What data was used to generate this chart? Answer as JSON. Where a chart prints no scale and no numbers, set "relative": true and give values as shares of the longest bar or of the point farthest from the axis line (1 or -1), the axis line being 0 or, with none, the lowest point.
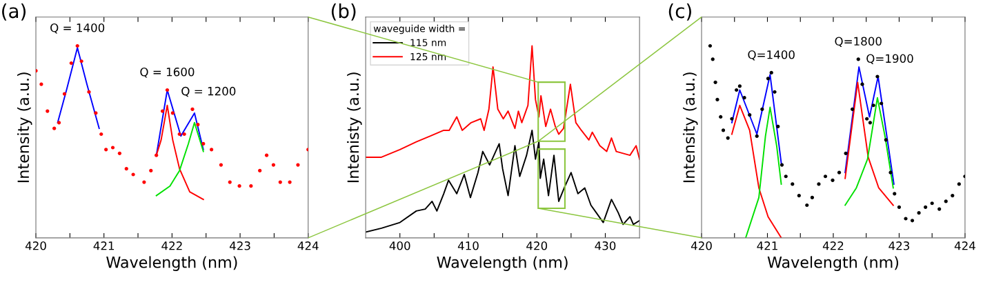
{
  "chart_data": [
    {
      "type": "scatter",
      "title": "(a)",
      "xlabel": "Wavelength (nm)",
      "ylabel": "Intensity (a.u.)",
      "relative": true,
      "xlim": [
        420,
        424
      ],
      "xticks": [
        420,
        {
          "value": 420.5,
          "label": null
        },
        421,
        {
          "value": 421.5,
          "label": null
        },
        422,
        {
          "value": 422.5,
          "label": null
        },
        423,
        {
          "value": 423.5,
          "label": null
        },
        424
      ],
      "grid": false,
      "legend": false,
      "annotations": [
        {
          "text": "Q = 1400",
          "x": 420.61,
          "y": 1.0
        },
        {
          "text": "Q = 1600",
          "x": 421.93,
          "y": 0.77
        },
        {
          "text": "Q = 1200",
          "x": 422.3,
          "y": 0.67
        }
      ],
      "series": [
        {
          "type": "scatter",
          "color": "#ff0000",
          "marker": "circle",
          "x": [
            420.0,
            420.08,
            420.17,
            420.27,
            420.34,
            420.42,
            420.52,
            420.61,
            420.67,
            420.78,
            420.88,
            420.96,
            421.03,
            421.13,
            421.23,
            421.33,
            421.43,
            421.59,
            421.69,
            421.77,
            421.86,
            421.93,
            422.01,
            422.11,
            422.18,
            422.3,
            422.38,
            422.46,
            422.58,
            422.72,
            422.85,
            422.99,
            423.16,
            423.29,
            423.39,
            423.49,
            423.59,
            423.73,
            423.85,
            424.0
          ],
          "values": [
            0.87,
            0.8,
            0.66,
            0.57,
            0.6,
            0.75,
            0.91,
            1.0,
            0.92,
            0.76,
            0.65,
            0.54,
            0.46,
            0.47,
            0.44,
            0.36,
            0.33,
            0.29,
            0.35,
            0.43,
            0.66,
            0.77,
            0.65,
            0.54,
            0.54,
            0.67,
            0.59,
            0.49,
            0.46,
            0.38,
            0.29,
            0.27,
            0.27,
            0.35,
            0.43,
            0.38,
            0.29,
            0.29,
            0.38,
            0.46
          ]
        },
        {
          "type": "line",
          "color": "#0000ff",
          "x": [
            420.32,
            420.45,
            420.61,
            420.75,
            420.93,
            421.3,
            421.77,
            421.93,
            422.13,
            422.33,
            422.46
          ],
          "values": [
            0.6,
            0.77,
            0.99,
            0.8,
            0.57,
            null,
            0.43,
            0.77,
            0.53,
            0.65,
            0.46
          ]
        },
        {
          "type": "line",
          "color": "#ff0000",
          "x": [
            421.77,
            421.84,
            421.93,
            422.01,
            422.11,
            422.26,
            422.46
          ],
          "values": [
            0.43,
            0.51,
            0.69,
            0.51,
            0.36,
            0.24,
            0.2
          ]
        },
        {
          "type": "line",
          "color": "#00e000",
          "x": [
            421.77,
            421.97,
            422.11,
            422.24,
            422.33,
            422.46
          ],
          "values": [
            0.22,
            0.27,
            0.35,
            0.49,
            0.6,
            0.45
          ]
        }
      ]
    },
    {
      "type": "line",
      "title": "(b)",
      "xlabel": "Wavelength (nm)",
      "ylabel": "Intenisty (a.u.)",
      "relative": true,
      "xlim": [
        395,
        435
      ],
      "xticks": [
        400,
        {
          "value": 405,
          "label": null
        },
        410,
        {
          "value": 415,
          "label": null
        },
        420,
        {
          "value": 425,
          "label": null
        },
        430
      ],
      "grid": false,
      "legend": "top left",
      "legend_title": "waveguide width =",
      "series": [
        {
          "name": "115 nm",
          "color": "#000000",
          "x": [
            395,
            397.3,
            400,
            402.4,
            403.7,
            404.7,
            405.4,
            406.4,
            407.1,
            408.3,
            409.4,
            410.3,
            411.4,
            412.1,
            413.1,
            414.5,
            415.0,
            415.8,
            416.8,
            417.5,
            418.5,
            419.3,
            419.8,
            420.3,
            420.5,
            421.0,
            421.7,
            422.5,
            423.2,
            424.0,
            425.0,
            426.0,
            427.0,
            427.9,
            428.7,
            429.7,
            430.9,
            431.9,
            432.6,
            433.6,
            434.1,
            435
          ],
          "values": [
            0.03,
            0.05,
            0.08,
            0.14,
            0.15,
            0.19,
            0.14,
            0.23,
            0.3,
            0.23,
            0.33,
            0.21,
            0.34,
            0.45,
            0.38,
            0.49,
            0.36,
            0.22,
            0.48,
            0.32,
            0.43,
            0.56,
            0.41,
            0.5,
            0.31,
            0.41,
            0.22,
            0.43,
            0.19,
            0.26,
            0.34,
            0.23,
            0.26,
            0.17,
            0.13,
            0.08,
            0.2,
            0.13,
            0.07,
            0.11,
            0.07,
            0.09
          ]
        },
        {
          "name": "125 nm",
          "color": "#ff0000",
          "x": [
            395,
            397.3,
            400,
            402.4,
            404.4,
            406.4,
            407.2,
            408.3,
            409.1,
            410.4,
            411.8,
            412.3,
            413.0,
            413.6,
            414.3,
            415.1,
            415.8,
            416.8,
            417.3,
            417.8,
            418.7,
            419.3,
            419.8,
            420.3,
            420.6,
            421.3,
            422.0,
            422.7,
            423.2,
            423.9,
            424.9,
            425.7,
            426.5,
            427.6,
            428.1,
            429.2,
            430.2,
            430.9,
            431.6,
            432.6,
            433.6,
            434.5,
            435
          ],
          "values": [
            0.42,
            0.42,
            0.46,
            0.5,
            0.53,
            0.56,
            0.56,
            0.63,
            0.56,
            0.6,
            0.62,
            0.56,
            0.67,
            0.89,
            0.67,
            0.62,
            0.66,
            0.57,
            0.66,
            0.6,
            0.69,
            1.0,
            0.72,
            0.63,
            0.74,
            0.58,
            0.67,
            0.58,
            0.54,
            0.57,
            0.8,
            0.6,
            0.56,
            0.51,
            0.55,
            0.48,
            0.45,
            0.52,
            0.45,
            0.44,
            0.43,
            0.48,
            0.41
          ]
        }
      ]
    },
    {
      "type": "scatter",
      "title": "(c)",
      "xlabel": "Wavelength (nm)",
      "ylabel": "Intensity (a.u.)",
      "relative": true,
      "xlim": [
        420,
        424
      ],
      "xticks": [
        420,
        {
          "value": 420.5,
          "label": null
        },
        421,
        {
          "value": 421.5,
          "label": null
        },
        422,
        {
          "value": 422.5,
          "label": null
        },
        423,
        {
          "value": 423.5,
          "label": null
        },
        424
      ],
      "grid": false,
      "legend": false,
      "annotations": [
        {
          "text": "Q=1400",
          "x": 421.06,
          "y": 0.86
        },
        {
          "text": "Q=1800",
          "x": 422.38,
          "y": 0.93
        },
        {
          "text": "Q=1900",
          "x": 422.67,
          "y": 0.84
        }
      ],
      "series": [
        {
          "type": "scatter",
          "color": "#000000",
          "marker": "circle",
          "x": [
            420.13,
            420.17,
            420.21,
            420.24,
            420.29,
            420.33,
            420.4,
            420.46,
            420.53,
            420.58,
            420.65,
            420.73,
            420.84,
            420.92,
            421.01,
            421.06,
            421.11,
            421.16,
            421.22,
            421.28,
            421.38,
            421.48,
            421.6,
            421.68,
            421.78,
            421.88,
            421.99,
            422.09,
            422.19,
            422.29,
            422.38,
            422.44,
            422.51,
            422.56,
            422.61,
            422.67,
            422.73,
            422.8,
            422.87,
            422.93,
            423.0,
            423.1,
            423.2,
            423.3,
            423.4,
            423.5,
            423.61,
            423.71,
            423.81,
            423.91,
            424.0
          ],
          "values": [
            1.0,
            0.93,
            0.81,
            0.72,
            0.63,
            0.56,
            0.52,
            0.62,
            0.77,
            0.79,
            0.73,
            0.64,
            0.53,
            0.67,
            0.83,
            0.86,
            0.76,
            0.58,
            0.38,
            0.32,
            0.28,
            0.22,
            0.17,
            0.21,
            0.28,
            0.32,
            0.3,
            0.34,
            0.44,
            0.67,
            0.93,
            0.8,
            0.62,
            0.6,
            0.69,
            0.84,
            0.7,
            0.51,
            0.34,
            0.23,
            0.16,
            0.1,
            0.09,
            0.13,
            0.16,
            0.18,
            0.15,
            0.19,
            0.22,
            0.28,
            0.32
          ]
        },
        {
          "type": "line",
          "color": "#0000ff",
          "x": [
            420.46,
            420.58,
            420.84,
            421.04,
            421.21,
            421.7,
            422.18,
            422.39,
            422.55,
            422.68,
            422.92
          ],
          "values": [
            0.6,
            0.77,
            0.54,
            0.85,
            0.39,
            null,
            0.34,
            0.89,
            0.63,
            0.84,
            0.28
          ]
        },
        {
          "type": "line",
          "color": "#ff0000",
          "x": [
            420.46,
            420.58,
            420.73,
            420.87,
            421.01,
            421.21,
            421.7,
            422.18,
            422.37,
            422.53,
            422.69,
            422.91
          ],
          "values": [
            0.54,
            0.69,
            0.56,
            0.26,
            0.11,
            0.0,
            null,
            0.31,
            0.81,
            0.42,
            0.26,
            0.17
          ]
        },
        {
          "type": "line",
          "color": "#00e000",
          "x": [
            420.67,
            420.87,
            420.97,
            421.04,
            421.14,
            421.21,
            421.7,
            422.18,
            422.35,
            422.52,
            422.67,
            422.79,
            422.91
          ],
          "values": [
            0.0,
            0.21,
            0.53,
            0.68,
            0.48,
            0.28,
            null,
            0.17,
            0.26,
            0.41,
            0.73,
            0.52,
            0.26
          ]
        }
      ]
    }
  ]
}
